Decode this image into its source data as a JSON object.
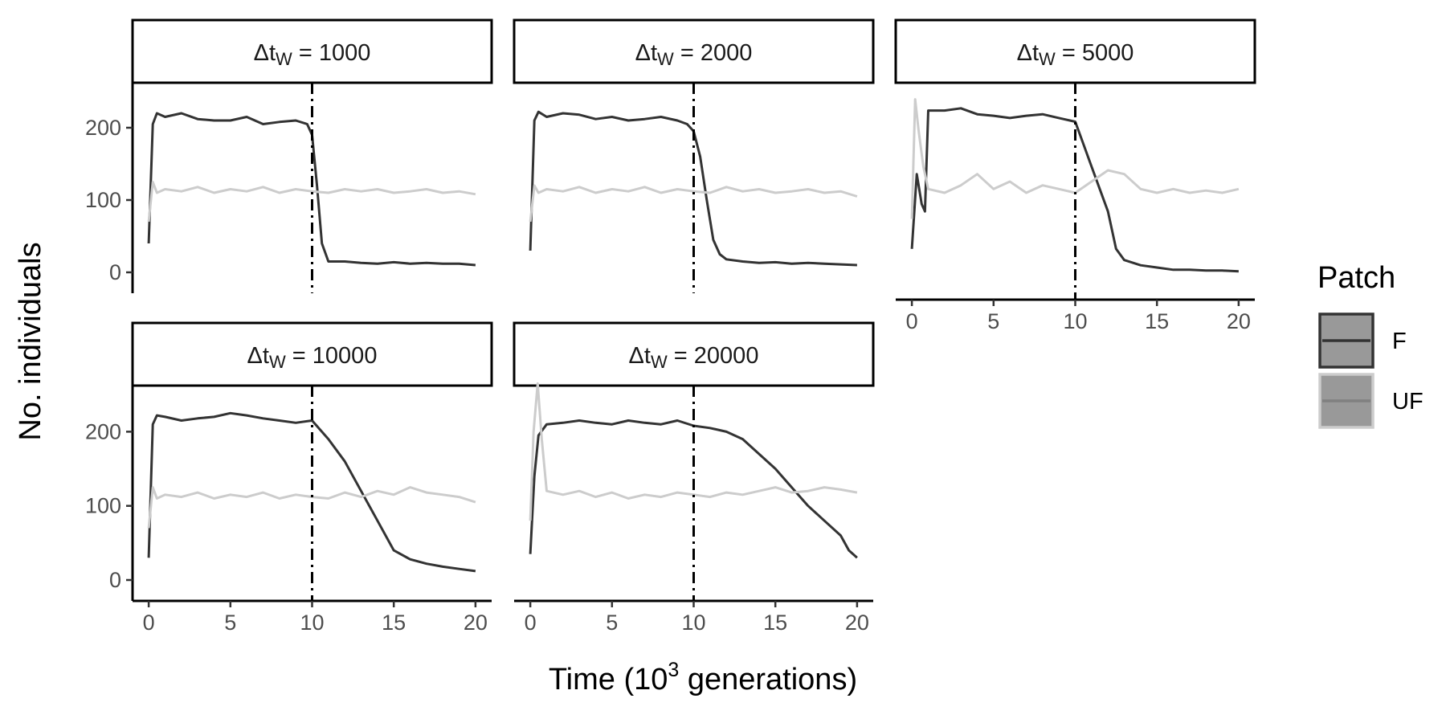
{
  "chart_data": {
    "type": "line",
    "ylabel": "No. individuals",
    "xlabel": {
      "prefix": "Time (10",
      "superscript": "3",
      "suffix": " generations)"
    },
    "xlim": [
      0,
      20
    ],
    "ylim": [
      0,
      260
    ],
    "xticks": [
      0,
      5,
      10,
      15,
      20
    ],
    "yticks": [
      0,
      100,
      200
    ],
    "vline_x": 10,
    "grid": false,
    "legend": {
      "title": "Patch",
      "position": "right",
      "entries": [
        {
          "label": "F",
          "color": "#333333"
        },
        {
          "label": "UF",
          "color": "#c8c8c8"
        }
      ]
    },
    "colors": {
      "F": "#333333",
      "UF": "#cccccc"
    },
    "panels": [
      {
        "strip": {
          "base": "Δt",
          "sub": "W",
          "value": " = 1000"
        },
        "series": [
          {
            "name": "F",
            "x": [
              0,
              0.25,
              0.5,
              1,
              2,
              3,
              4,
              5,
              6,
              7,
              8,
              9,
              9.7,
              10,
              10.3,
              10.6,
              11,
              12,
              13,
              14,
              15,
              16,
              17,
              18,
              19,
              20
            ],
            "y": [
              40,
              205,
              220,
              215,
              220,
              212,
              210,
              210,
              215,
              205,
              208,
              210,
              205,
              190,
              120,
              40,
              15,
              15,
              13,
              12,
              14,
              12,
              13,
              12,
              12,
              10
            ]
          },
          {
            "name": "UF",
            "x": [
              0,
              0.25,
              0.5,
              1,
              2,
              3,
              4,
              5,
              6,
              7,
              8,
              9,
              10,
              11,
              12,
              13,
              14,
              15,
              16,
              17,
              18,
              19,
              20
            ],
            "y": [
              70,
              125,
              110,
              115,
              112,
              118,
              110,
              115,
              112,
              118,
              110,
              115,
              112,
              110,
              115,
              112,
              115,
              110,
              112,
              115,
              110,
              112,
              108
            ]
          }
        ]
      },
      {
        "strip": {
          "base": "Δt",
          "sub": "W",
          "value": " = 2000"
        },
        "series": [
          {
            "name": "F",
            "x": [
              0,
              0.25,
              0.5,
              1,
              2,
              3,
              4,
              5,
              6,
              7,
              8,
              9,
              9.6,
              10,
              10.4,
              10.8,
              11.2,
              11.6,
              12,
              13,
              14,
              15,
              16,
              17,
              18,
              19,
              20
            ],
            "y": [
              30,
              210,
              222,
              215,
              220,
              218,
              212,
              215,
              210,
              212,
              215,
              210,
              205,
              195,
              160,
              100,
              45,
              25,
              18,
              15,
              13,
              14,
              12,
              13,
              12,
              11,
              10
            ]
          },
          {
            "name": "UF",
            "x": [
              0,
              0.25,
              0.5,
              1,
              2,
              3,
              4,
              5,
              6,
              7,
              8,
              9,
              10,
              11,
              12,
              13,
              14,
              15,
              16,
              17,
              18,
              19,
              20
            ],
            "y": [
              70,
              120,
              110,
              115,
              112,
              118,
              110,
              115,
              112,
              118,
              110,
              115,
              112,
              110,
              118,
              112,
              115,
              110,
              112,
              115,
              110,
              112,
              105
            ]
          }
        ]
      },
      {
        "strip": {
          "base": "Δt",
          "sub": "W",
          "value": " = 5000"
        },
        "series": [
          {
            "name": "F",
            "x": [
              0,
              0.3,
              0.6,
              0.8,
              1,
              2,
              3,
              4,
              5,
              6,
              7,
              8,
              9,
              10,
              10.5,
              11,
              11.5,
              12,
              12.5,
              13,
              14,
              15,
              16,
              17,
              18,
              19,
              20
            ],
            "y": [
              40,
              140,
              100,
              90,
              225,
              225,
              228,
              220,
              218,
              215,
              218,
              220,
              215,
              210,
              180,
              150,
              120,
              90,
              40,
              25,
              18,
              15,
              12,
              12,
              11,
              11,
              10
            ]
          },
          {
            "name": "UF",
            "x": [
              0,
              0.2,
              0.4,
              0.7,
              1,
              2,
              3,
              4,
              5,
              6,
              7,
              8,
              9,
              10,
              11,
              12,
              13,
              14,
              15,
              16,
              17,
              18,
              19,
              20
            ],
            "y": [
              80,
              240,
              200,
              150,
              120,
              115,
              125,
              140,
              120,
              130,
              115,
              125,
              120,
              115,
              130,
              145,
              140,
              120,
              115,
              120,
              115,
              118,
              115,
              120
            ]
          }
        ]
      },
      {
        "strip": {
          "base": "Δt",
          "sub": "W",
          "value": " = 10000"
        },
        "series": [
          {
            "name": "F",
            "x": [
              0,
              0.25,
              0.5,
              1,
              2,
              3,
              4,
              5,
              6,
              7,
              8,
              9,
              10,
              11,
              12,
              13,
              14,
              15,
              16,
              17,
              18,
              19,
              20
            ],
            "y": [
              30,
              210,
              222,
              220,
              215,
              218,
              220,
              225,
              222,
              218,
              215,
              212,
              215,
              190,
              160,
              120,
              80,
              40,
              28,
              22,
              18,
              15,
              12
            ]
          },
          {
            "name": "UF",
            "x": [
              0,
              0.25,
              0.5,
              1,
              2,
              3,
              4,
              5,
              6,
              7,
              8,
              9,
              10,
              11,
              12,
              13,
              14,
              15,
              16,
              17,
              18,
              19,
              20
            ],
            "y": [
              70,
              125,
              110,
              115,
              112,
              118,
              110,
              115,
              112,
              118,
              110,
              115,
              112,
              110,
              118,
              112,
              120,
              115,
              125,
              118,
              115,
              112,
              105
            ]
          }
        ]
      },
      {
        "strip": {
          "base": "Δt",
          "sub": "W",
          "value": " = 20000"
        },
        "series": [
          {
            "name": "F",
            "x": [
              0,
              0.25,
              0.5,
              1,
              2,
              3,
              4,
              5,
              6,
              7,
              8,
              9,
              10,
              11,
              12,
              13,
              14,
              15,
              16,
              17,
              18,
              19,
              19.5,
              20
            ],
            "y": [
              35,
              140,
              195,
              210,
              212,
              215,
              212,
              210,
              215,
              212,
              210,
              215,
              208,
              205,
              200,
              190,
              170,
              150,
              125,
              100,
              80,
              60,
              40,
              30
            ]
          },
          {
            "name": "UF",
            "x": [
              0,
              0.2,
              0.45,
              0.7,
              1,
              2,
              3,
              4,
              5,
              6,
              7,
              8,
              9,
              10,
              11,
              12,
              13,
              14,
              15,
              16,
              17,
              18,
              19,
              20
            ],
            "y": [
              80,
              200,
              265,
              190,
              120,
              115,
              120,
              112,
              118,
              110,
              115,
              112,
              118,
              115,
              112,
              118,
              115,
              120,
              125,
              118,
              120,
              125,
              122,
              118
            ]
          }
        ]
      }
    ]
  }
}
